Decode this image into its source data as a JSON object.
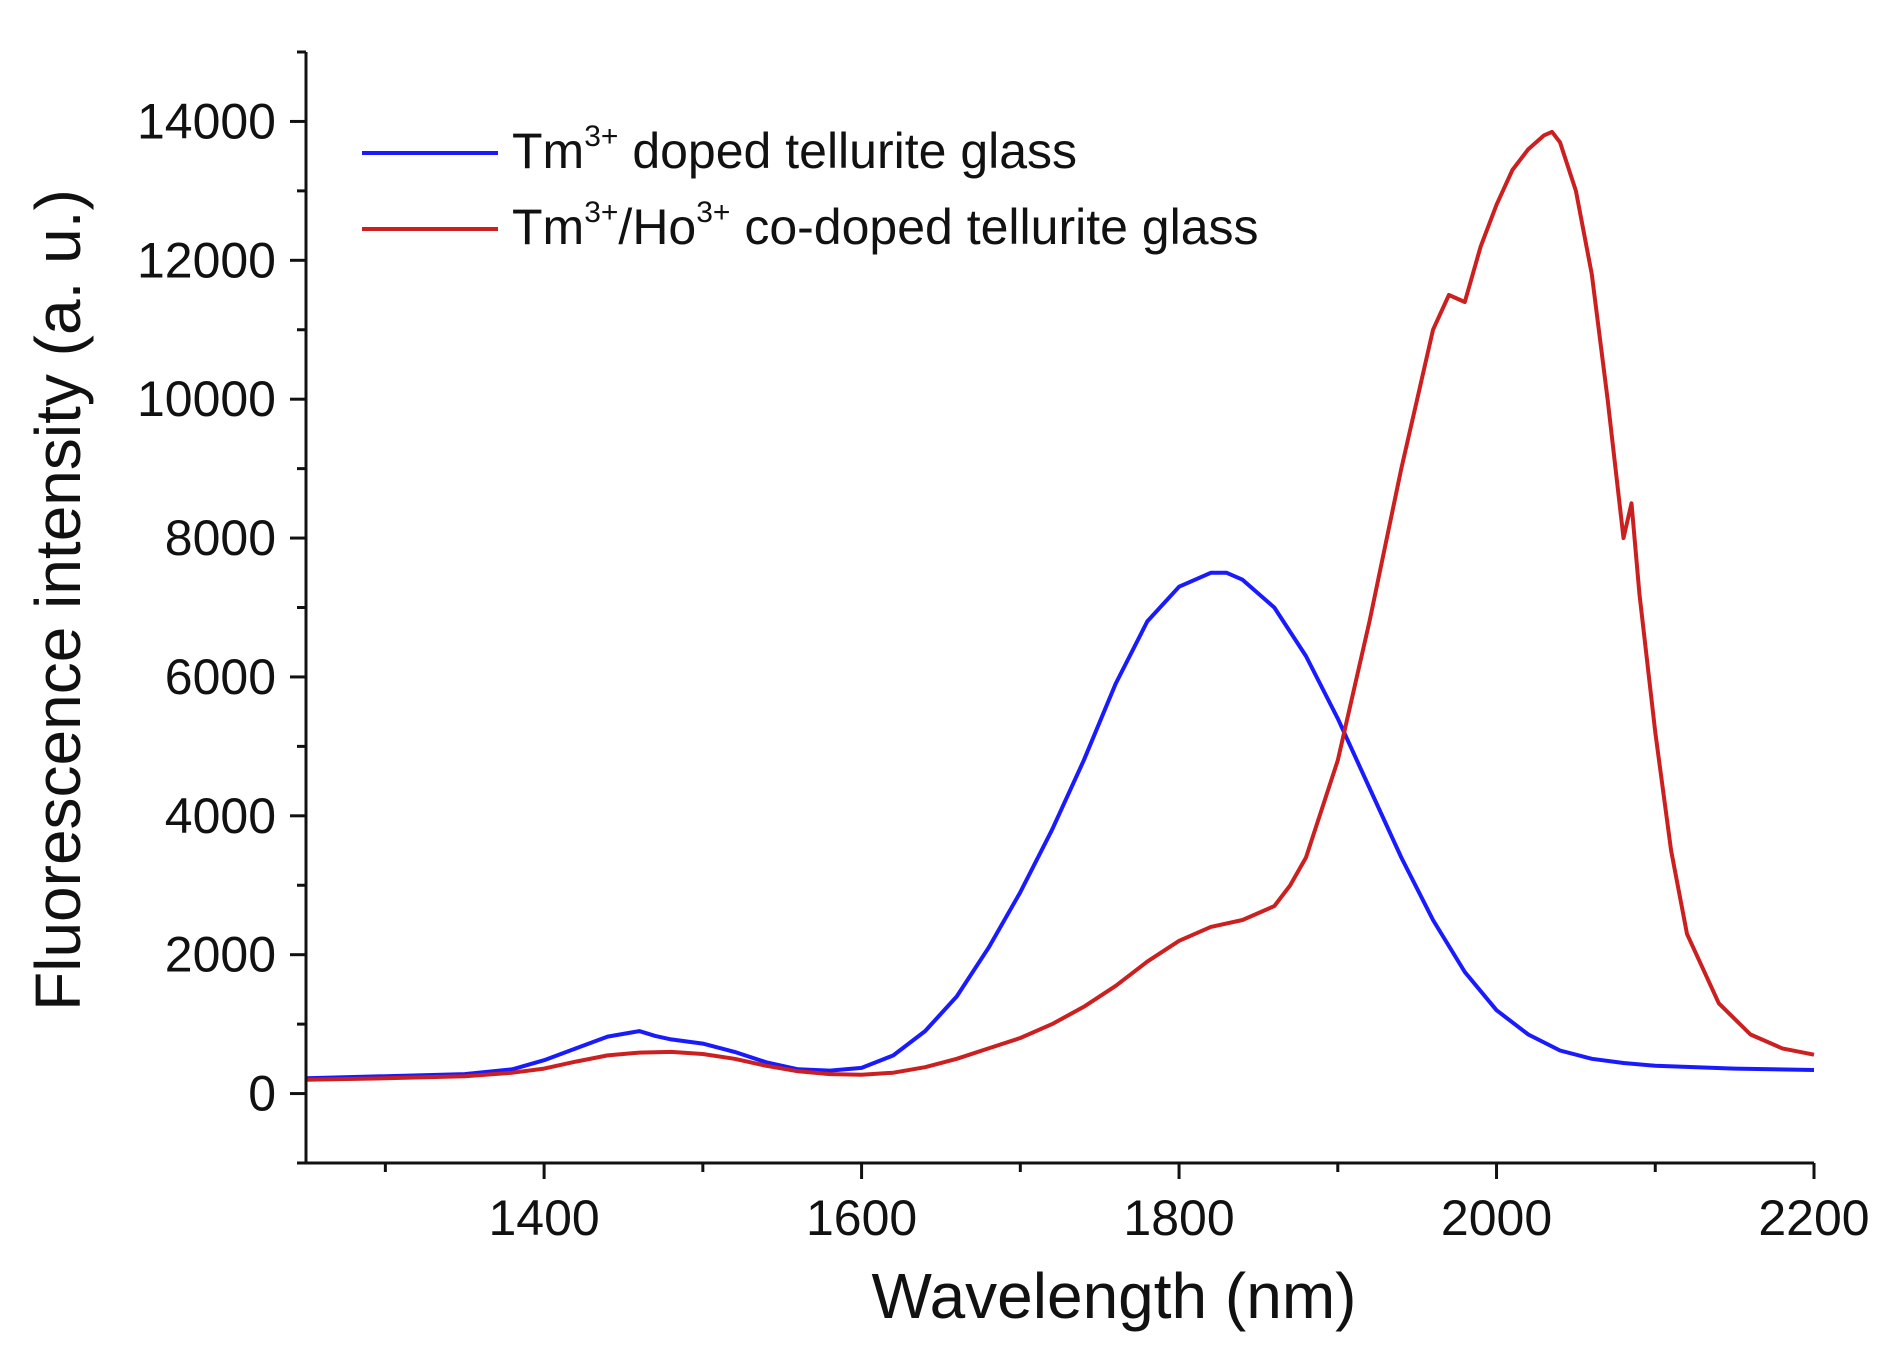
{
  "chart_data": {
    "type": "line",
    "title": "",
    "xlabel": "Wavelength (nm)",
    "ylabel": "Fluorescence intensity (a. u.)",
    "xlim": [
      1250,
      2200
    ],
    "ylim": [
      -1000,
      15000
    ],
    "x_ticks": [
      1400,
      1600,
      1800,
      2000,
      2200
    ],
    "x_tick_labels": [
      "1400",
      "1600",
      "1800",
      "2000",
      "2200"
    ],
    "x_minor_ticks": [
      1300,
      1500,
      1700,
      1900,
      2100
    ],
    "y_ticks": [
      0,
      2000,
      4000,
      6000,
      8000,
      10000,
      12000,
      14000
    ],
    "y_tick_labels": [
      "0",
      "2000",
      "4000",
      "6000",
      "8000",
      "10000",
      "12000",
      "14000"
    ],
    "y_minor_ticks": [
      -1000,
      1000,
      3000,
      5000,
      7000,
      9000,
      11000,
      13000,
      15000
    ],
    "grid": false,
    "legend_position": "top-left",
    "series": [
      {
        "name": "Tm3+ doped tellurite glass",
        "legend": {
          "base": "Tm",
          "sup": "3+",
          "rest": " doped tellurite glass"
        },
        "color": "#1a1aff",
        "x": [
          1250,
          1300,
          1350,
          1380,
          1400,
          1420,
          1440,
          1460,
          1470,
          1480,
          1500,
          1520,
          1540,
          1560,
          1580,
          1600,
          1620,
          1640,
          1660,
          1680,
          1700,
          1720,
          1740,
          1760,
          1780,
          1800,
          1820,
          1830,
          1840,
          1860,
          1880,
          1900,
          1920,
          1940,
          1960,
          1980,
          2000,
          2020,
          2040,
          2060,
          2080,
          2100,
          2150,
          2200
        ],
        "y": [
          220,
          250,
          280,
          350,
          480,
          650,
          820,
          900,
          830,
          780,
          720,
          600,
          450,
          350,
          330,
          370,
          550,
          900,
          1400,
          2100,
          2900,
          3800,
          4800,
          5900,
          6800,
          7300,
          7500,
          7500,
          7400,
          7000,
          6300,
          5400,
          4400,
          3400,
          2500,
          1750,
          1200,
          850,
          620,
          500,
          440,
          400,
          360,
          340
        ]
      },
      {
        "name": "Tm3+/Ho3+ co-doped tellurite glass",
        "legend": {
          "base": "Tm",
          "sup": "3+",
          "mid": "/Ho",
          "sup2": "3+",
          "rest": " co-doped tellurite glass"
        },
        "color": "#cc1f1f",
        "x": [
          1250,
          1300,
          1350,
          1380,
          1400,
          1420,
          1440,
          1460,
          1480,
          1500,
          1520,
          1540,
          1560,
          1580,
          1600,
          1620,
          1640,
          1660,
          1680,
          1700,
          1720,
          1740,
          1760,
          1780,
          1800,
          1820,
          1840,
          1860,
          1870,
          1880,
          1900,
          1920,
          1940,
          1950,
          1960,
          1970,
          1980,
          1990,
          2000,
          2010,
          2020,
          2030,
          2035,
          2040,
          2050,
          2060,
          2070,
          2080,
          2085,
          2090,
          2100,
          2110,
          2120,
          2140,
          2160,
          2180,
          2200
        ],
        "y": [
          200,
          220,
          250,
          300,
          360,
          460,
          550,
          590,
          600,
          570,
          500,
          400,
          320,
          280,
          270,
          300,
          380,
          500,
          650,
          800,
          1000,
          1250,
          1550,
          1900,
          2200,
          2400,
          2500,
          2700,
          3000,
          3400,
          4800,
          6800,
          9000,
          10000,
          11000,
          11500,
          11400,
          12200,
          12800,
          13300,
          13600,
          13800,
          13850,
          13700,
          13000,
          11800,
          10000,
          8000,
          8500,
          7200,
          5200,
          3500,
          2300,
          1300,
          850,
          650,
          560
        ]
      }
    ]
  }
}
